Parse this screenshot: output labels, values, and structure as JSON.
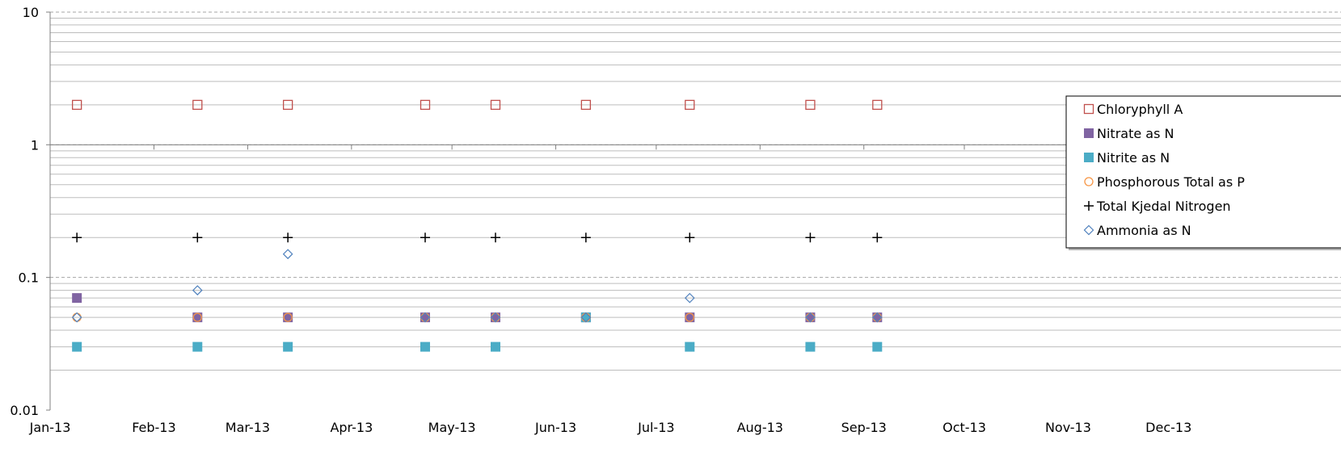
{
  "chart_data": {
    "type": "scatter",
    "y_scale": "log",
    "ylim": [
      0.01,
      10
    ],
    "y_ticks": [
      "10",
      "1",
      "0.1",
      "0.01"
    ],
    "x_range": [
      "2013-01-01",
      "2013-12-31"
    ],
    "x_ticks": [
      "Jan-13",
      "Feb-13",
      "Mar-13",
      "Apr-13",
      "May-13",
      "Jun-13",
      "Jul-13",
      "Aug-13",
      "Sep-13",
      "Oct-13",
      "Nov-13",
      "Dec-13"
    ],
    "grid": true,
    "legend_position": "right",
    "series": [
      {
        "name": "Chloryphyll A",
        "marker": "open-square",
        "color": "#C0504D",
        "points": [
          [
            "2013-01-09",
            2
          ],
          [
            "2013-02-14",
            2
          ],
          [
            "2013-03-13",
            2
          ],
          [
            "2013-04-23",
            2
          ],
          [
            "2013-05-14",
            2
          ],
          [
            "2013-06-10",
            2
          ],
          [
            "2013-07-11",
            2
          ],
          [
            "2013-08-16",
            2
          ],
          [
            "2013-09-05",
            2
          ]
        ]
      },
      {
        "name": "Nitrate as N",
        "marker": "filled-square",
        "color": "#8064A2",
        "points": [
          [
            "2013-01-09",
            0.07
          ],
          [
            "2013-02-14",
            0.05
          ],
          [
            "2013-03-13",
            0.05
          ],
          [
            "2013-04-23",
            0.05
          ],
          [
            "2013-05-14",
            0.05
          ],
          [
            "2013-06-10",
            0.05
          ],
          [
            "2013-07-11",
            0.05
          ],
          [
            "2013-08-16",
            0.05
          ],
          [
            "2013-09-05",
            0.05
          ]
        ]
      },
      {
        "name": "Nitrite as N",
        "marker": "filled-square",
        "color": "#4BACC6",
        "points": [
          [
            "2013-01-09",
            0.03
          ],
          [
            "2013-02-14",
            0.03
          ],
          [
            "2013-03-13",
            0.03
          ],
          [
            "2013-04-23",
            0.03
          ],
          [
            "2013-05-14",
            0.03
          ],
          [
            "2013-06-10",
            0.05
          ],
          [
            "2013-07-11",
            0.03
          ],
          [
            "2013-08-16",
            0.03
          ],
          [
            "2013-09-05",
            0.03
          ]
        ]
      },
      {
        "name": "Phosphorous Total as P",
        "marker": "open-circle",
        "color": "#F79646",
        "points": [
          [
            "2013-01-09",
            0.05
          ],
          [
            "2013-02-14",
            0.05
          ],
          [
            "2013-03-13",
            0.05
          ],
          [
            "2013-04-23",
            0.05
          ],
          [
            "2013-05-14",
            0.05
          ],
          [
            "2013-06-10",
            0.05
          ],
          [
            "2013-07-11",
            0.05
          ],
          [
            "2013-08-16",
            0.05
          ],
          [
            "2013-09-05",
            0.05
          ]
        ]
      },
      {
        "name": "Total Kjedal Nitrogen",
        "marker": "plus",
        "color": "#000000",
        "points": [
          [
            "2013-01-09",
            0.2
          ],
          [
            "2013-02-14",
            0.2
          ],
          [
            "2013-03-13",
            0.2
          ],
          [
            "2013-04-23",
            0.2
          ],
          [
            "2013-05-14",
            0.2
          ],
          [
            "2013-06-10",
            0.2
          ],
          [
            "2013-07-11",
            0.2
          ],
          [
            "2013-08-16",
            0.2
          ],
          [
            "2013-09-05",
            0.2
          ]
        ]
      },
      {
        "name": "Ammonia as N",
        "marker": "open-diamond",
        "color": "#4F81BD",
        "points": [
          [
            "2013-01-09",
            0.05
          ],
          [
            "2013-02-14",
            0.08
          ],
          [
            "2013-03-13",
            0.15
          ],
          [
            "2013-04-23",
            0.05
          ],
          [
            "2013-05-14",
            0.05
          ],
          [
            "2013-06-10",
            0.05
          ],
          [
            "2013-07-11",
            0.07
          ],
          [
            "2013-08-16",
            0.05
          ],
          [
            "2013-09-05",
            0.05
          ]
        ]
      }
    ]
  }
}
